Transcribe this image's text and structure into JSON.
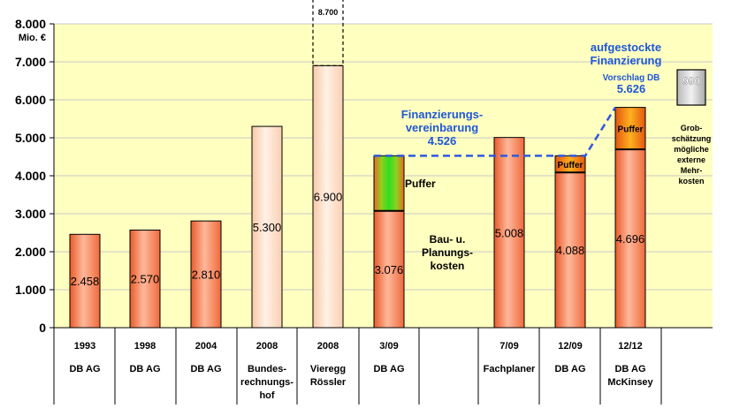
{
  "chart_data": {
    "type": "bar",
    "ylabel": "Mio. €",
    "ylim": [
      0,
      8000
    ],
    "yticks": [
      "0",
      "1.000",
      "2.000",
      "3.000",
      "4.000",
      "5.000",
      "6.000",
      "7.000",
      "8.000"
    ],
    "bars": [
      {
        "year": "1993",
        "label": "DB AG",
        "value": 2458,
        "value_label": "2.458",
        "style": "solid"
      },
      {
        "year": "1998",
        "label": "DB AG",
        "value": 2570,
        "value_label": "2.570",
        "style": "solid"
      },
      {
        "year": "2004",
        "label": "DB AG",
        "value": 2810,
        "value_label": "2.810",
        "style": "solid"
      },
      {
        "year": "2008",
        "label": "Bundes-\nrechnungs-\nhof",
        "value": 5300,
        "value_label": "5.300",
        "style": "light"
      },
      {
        "year": "2008",
        "label": "Vieregg\nRössler",
        "value": 6900,
        "value_label": "6.900",
        "style": "light",
        "extension": 8700,
        "extension_label": "8.700"
      },
      {
        "year": "3/09",
        "label": "DB AG",
        "value": 3076,
        "value_label": "3.076",
        "style": "solid",
        "puffer": 4526,
        "puffer_color": "green"
      },
      {
        "year": "7/09",
        "label": "Fachplaner",
        "value": 5008,
        "value_label": "5.008",
        "style": "solid"
      },
      {
        "year": "12/09",
        "label": "DB AG",
        "value": 4088,
        "value_label": "4.088",
        "style": "solid",
        "puffer": 4526,
        "puffer_color": "orange",
        "puffer_label": "Puffer"
      },
      {
        "year": "12/12",
        "label": "DB AG\nMcKinsey",
        "value": 4696,
        "value_label": "4.696",
        "style": "solid",
        "puffer": 5800,
        "puffer_color": "orange",
        "puffer_label": "Puffer"
      }
    ],
    "annotations": {
      "puffer": "Puffer",
      "bau": "Bau- u.\nPlanungs-\nkosten",
      "finanzierungsvereinbarung": "Finanzierungs-\nvereinbarung\n4.526",
      "aufgestockte": "aufgestockte\nFinanzierung",
      "vorschlag": "Vorschlag DB",
      "vorschlag_value": "5.626",
      "grey_box_value": "990",
      "grobschaetzung": "Grob-\nschätzung\nmögliche\nexterne\nMehr-\nkosten"
    },
    "colors": {
      "plot_bg": "#ffffc0",
      "bar_solid": "#ff8a5a",
      "bar_light": "#ffd7b8",
      "puffer_green": "#33cc22",
      "puffer_orange": "#ff8c1a",
      "dashed_line": "#2f58e0"
    }
  }
}
